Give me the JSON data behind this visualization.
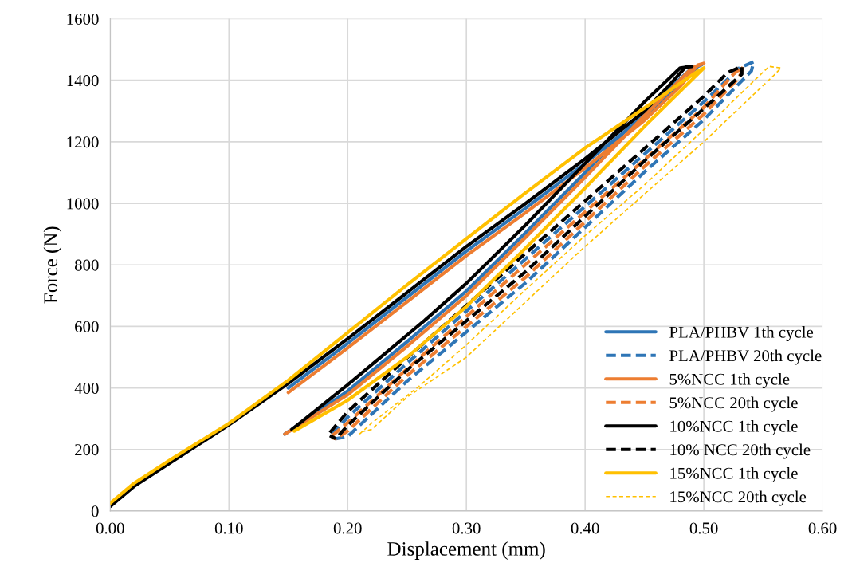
{
  "chart_data": {
    "type": "line",
    "xlabel": "Displacement (mm)",
    "ylabel": "Force (N)",
    "xlim": [
      0,
      0.6
    ],
    "ylim": [
      0,
      1600
    ],
    "xticks": [
      {
        "value": 0,
        "label": "0.00"
      },
      {
        "value": 0.1,
        "label": "0.10"
      },
      {
        "value": 0.2,
        "label": "0.20"
      },
      {
        "value": 0.3,
        "label": "0.30"
      },
      {
        "value": 0.4,
        "label": "0.40"
      },
      {
        "value": 0.5,
        "label": "0.50"
      },
      {
        "value": 0.6,
        "label": "0.60"
      }
    ],
    "yticks": [
      0,
      200,
      400,
      600,
      800,
      1000,
      1200,
      1400,
      1600
    ],
    "grid": true,
    "legend": "bottom right",
    "marker": "none",
    "series": [
      {
        "name": "PLA/PHBV 1th cycle",
        "color": "#2e75b6",
        "line_style": "solid",
        "x": [
          0.15,
          0.2,
          0.25,
          0.3,
          0.35,
          0.4,
          0.45,
          0.48,
          0.495,
          0.498,
          0.49,
          0.45,
          0.4,
          0.35,
          0.3,
          0.25,
          0.2,
          0.147
        ],
        "values": [
          400,
          545,
          695,
          845,
          985,
          1130,
          1285,
          1385,
          1445,
          1450,
          1440,
          1300,
          1100,
          905,
          715,
          550,
          390,
          250
        ]
      },
      {
        "name": "PLA/PHBV 20th cycle",
        "color": "#2e75b6",
        "line_style": "dashed",
        "x": [
          0.187,
          0.2,
          0.25,
          0.3,
          0.35,
          0.4,
          0.45,
          0.5,
          0.53,
          0.542,
          0.54,
          0.5,
          0.45,
          0.4,
          0.35,
          0.3,
          0.25,
          0.2,
          0.19,
          0.187
        ],
        "values": [
          250,
          305,
          480,
          650,
          820,
          990,
          1160,
          1330,
          1440,
          1460,
          1430,
          1272,
          1102,
          922,
          742,
          582,
          422,
          242,
          235,
          243
        ]
      },
      {
        "name": "5%NCC 1th cycle",
        "color": "#ed7d31",
        "line_style": "solid",
        "x": [
          0.15,
          0.2,
          0.25,
          0.3,
          0.35,
          0.4,
          0.45,
          0.48,
          0.495,
          0.5,
          0.49,
          0.45,
          0.4,
          0.35,
          0.3,
          0.25,
          0.2,
          0.147
        ],
        "values": [
          385,
          530,
          680,
          830,
          970,
          1115,
          1270,
          1380,
          1450,
          1455,
          1440,
          1285,
          1085,
          890,
          700,
          535,
          378,
          250
        ]
      },
      {
        "name": "5%NCC 20th cycle",
        "color": "#ed7d31",
        "line_style": "dashed",
        "x": [
          0.187,
          0.2,
          0.25,
          0.3,
          0.35,
          0.4,
          0.45,
          0.5,
          0.525,
          0.533,
          0.53,
          0.5,
          0.45,
          0.4,
          0.35,
          0.3,
          0.25,
          0.2,
          0.19,
          0.187
        ],
        "values": [
          245,
          287,
          462,
          632,
          802,
          972,
          1142,
          1312,
          1420,
          1445,
          1410,
          1290,
          1120,
          940,
          760,
          600,
          440,
          260,
          235,
          238
        ]
      },
      {
        "name": "10%NCC 1th cycle",
        "color": "#000000",
        "line_style": "solid",
        "x": [
          0,
          0.02,
          0.05,
          0.1,
          0.15,
          0.2,
          0.25,
          0.3,
          0.35,
          0.4,
          0.45,
          0.47,
          0.485,
          0.49,
          0.48,
          0.45,
          0.4,
          0.35,
          0.3,
          0.265,
          0.2,
          0.153
        ],
        "values": [
          15,
          80,
          155,
          280,
          415,
          560,
          710,
          860,
          1000,
          1145,
          1300,
          1380,
          1445,
          1445,
          1440,
          1330,
          1130,
          930,
          740,
          620,
          410,
          265
        ]
      },
      {
        "name": "10% NCC 20th cycle",
        "color": "#000000",
        "line_style": "dashed",
        "x": [
          0.185,
          0.2,
          0.25,
          0.3,
          0.35,
          0.4,
          0.45,
          0.5,
          0.52,
          0.532,
          0.532,
          0.5,
          0.45,
          0.4,
          0.35,
          0.3,
          0.25,
          0.2,
          0.19,
          0.185
        ],
        "values": [
          255,
          323,
          498,
          668,
          838,
          1008,
          1178,
          1348,
          1425,
          1445,
          1420,
          1308,
          1138,
          958,
          778,
          618,
          458,
          278,
          235,
          245
        ]
      },
      {
        "name": "15%NCC 1th cycle",
        "color": "#ffc000",
        "line_style": "solid",
        "x": [
          0,
          0.02,
          0.05,
          0.1,
          0.15,
          0.2,
          0.25,
          0.3,
          0.35,
          0.4,
          0.45,
          0.48,
          0.495,
          0.5,
          0.45,
          0.4,
          0.35,
          0.3,
          0.25,
          0.2,
          0.155
        ],
        "values": [
          25,
          90,
          165,
          285,
          425,
          580,
          735,
          885,
          1035,
          1180,
          1310,
          1390,
          1430,
          1440,
          1250,
          1050,
          855,
          665,
          500,
          360,
          260
        ]
      },
      {
        "name": "15%NCC 20th cycle",
        "color": "#ffc000",
        "line_style": "dotted",
        "x": [
          0.21,
          0.22,
          0.26,
          0.3,
          0.35,
          0.4,
          0.45,
          0.5,
          0.54,
          0.555,
          0.565,
          0.56,
          0.5,
          0.45,
          0.4,
          0.35,
          0.3,
          0.25,
          0.22,
          0.21
        ],
        "values": [
          250,
          285,
          405,
          540,
          720,
          895,
          1060,
          1240,
          1390,
          1445,
          1440,
          1420,
          1200,
          1030,
          860,
          680,
          500,
          370,
          265,
          256
        ]
      }
    ]
  }
}
